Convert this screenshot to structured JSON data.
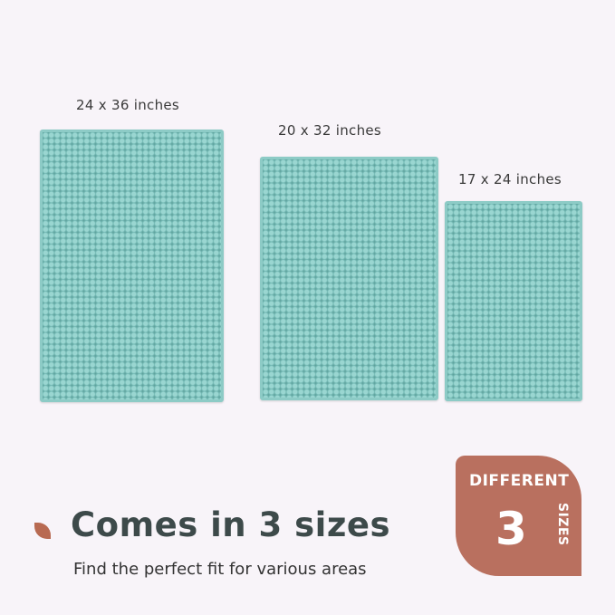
{
  "sizes": [
    {
      "label": "24 x 36 inches"
    },
    {
      "label": "20 x 32 inches"
    },
    {
      "label": "17 x 24 inches"
    }
  ],
  "headline": "Comes in 3 sizes",
  "subheadline": "Find the perfect fit for various areas",
  "badge": {
    "top": "DIFFERENT",
    "number": "3",
    "side": "SIZES"
  },
  "colors": {
    "mat": "#7cc2bd",
    "accent": "#b9705f",
    "background": "#f8f4f9"
  }
}
